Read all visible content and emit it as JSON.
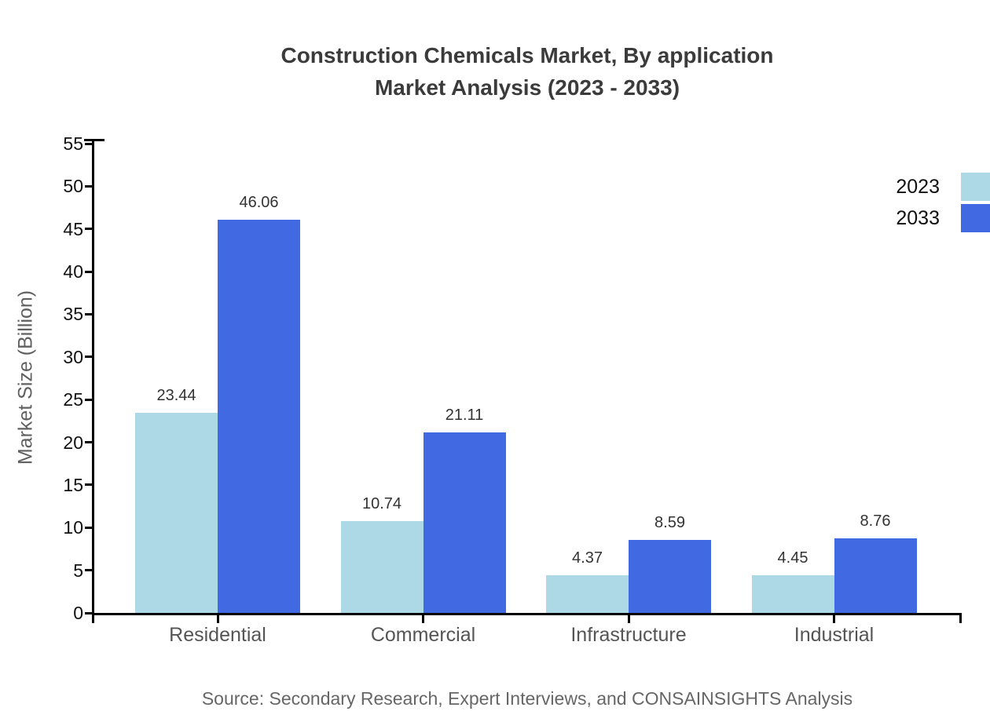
{
  "title": {
    "line1": "Construction Chemicals Market, By application",
    "line2": "Market Analysis (2023 - 2033)"
  },
  "source": "Source: Secondary Research, Expert Interviews, and CONSAINSIGHTS Analysis",
  "colors": {
    "series_2023": "#ADD8E6",
    "series_2033": "#4169E1",
    "axis": "#000000",
    "title_text": "#3b3b3b",
    "category_text": "#555555",
    "value_text": "#333333",
    "source_text": "#666666"
  },
  "legend": [
    {
      "label": "2023",
      "color": "#ADD8E6"
    },
    {
      "label": "2033",
      "color": "#4169E1"
    }
  ],
  "chart_data": {
    "type": "bar",
    "title": "Construction Chemicals Market, By application Market Analysis (2023 - 2033)",
    "categories": [
      "Residential",
      "Commercial",
      "Infrastructure",
      "Industrial"
    ],
    "series": [
      {
        "name": "2023",
        "color": "#ADD8E6",
        "values": [
          23.44,
          10.74,
          4.37,
          4.45
        ]
      },
      {
        "name": "2033",
        "color": "#4169E1",
        "values": [
          46.06,
          21.11,
          8.59,
          8.76
        ]
      }
    ],
    "xlabel": "",
    "ylabel": "Market Size (Billion)",
    "ylim": [
      0,
      55
    ],
    "ytick_step": 5,
    "grid": false,
    "legend_position": "top-right",
    "value_labels": true,
    "value_label_decimals": 2
  }
}
